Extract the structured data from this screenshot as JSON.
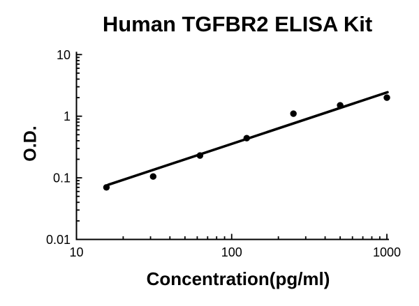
{
  "chart_data": {
    "type": "scatter",
    "title": "Human TGFBR2 ELISA Kit",
    "xlabel": "Concentration(pg/ml)",
    "ylabel": "O.D.",
    "x_scale": "log",
    "y_scale": "log",
    "xlim": [
      10,
      1030
    ],
    "ylim": [
      0.01,
      10
    ],
    "grid": false,
    "legend": null,
    "x_major_ticks": [
      10,
      100,
      1000
    ],
    "x_tick_labels": [
      "10",
      "100",
      "1000"
    ],
    "y_major_ticks": [
      0.01,
      0.1,
      1,
      10
    ],
    "y_tick_labels": [
      "0.01",
      "0.1",
      "1",
      "10"
    ],
    "minor_ticks": "log decades 2-9 on both axes, drawn inward",
    "points": {
      "x": [
        15.6,
        31.2,
        62.5,
        125,
        250,
        500,
        1000
      ],
      "y": [
        0.07,
        0.105,
        0.23,
        0.44,
        1.1,
        1.5,
        2.0
      ]
    },
    "fit_line": {
      "x1": 16,
      "y1": 0.077,
      "x2": 1010,
      "y2": 2.45
    },
    "colors": {
      "foreground": "#000000",
      "background": "#ffffff"
    }
  }
}
